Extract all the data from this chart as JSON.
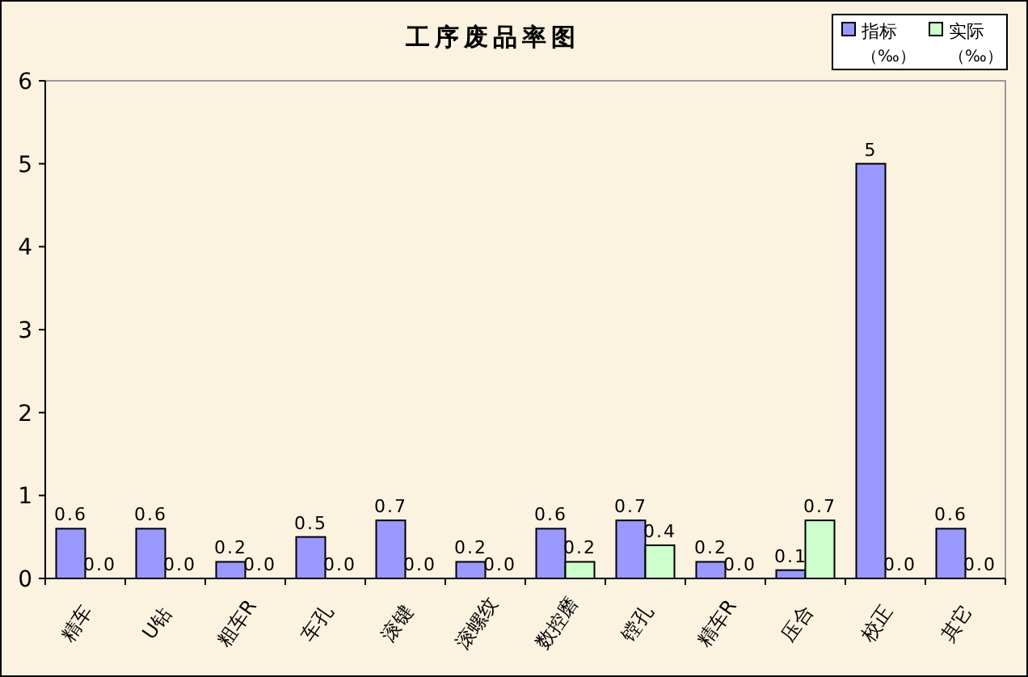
{
  "chart_data": {
    "type": "bar",
    "title": "工序废品率图",
    "categories": [
      "精车",
      "U钻",
      "粗车R",
      "车孔",
      "滚键",
      "滚螺纹",
      "数控磨",
      "镗孔",
      "精车R",
      "压合",
      "校正",
      "其它"
    ],
    "series": [
      {
        "name": "指标（‰）",
        "color": "#9999ff",
        "values": [
          0.6,
          0.6,
          0.2,
          0.5,
          0.7,
          0.2,
          0.6,
          0.7,
          0.2,
          0.1,
          5,
          0.6
        ],
        "value_labels": [
          "0.6",
          "0.6",
          "0.2",
          "0.5",
          "0.7",
          "0.2",
          "0.6",
          "0.7",
          "0.2",
          "0.1",
          "5",
          "0.6"
        ]
      },
      {
        "name": "实际（‰）",
        "color": "#ccffcc",
        "values": [
          0,
          0,
          0,
          0,
          0,
          0,
          0.2,
          0.4,
          0,
          0.7,
          0,
          0
        ],
        "value_labels": [
          "0.0",
          "0.0",
          "0.0",
          "0.0",
          "0.0",
          "0.0",
          "0.2",
          "0.4",
          "0.0",
          "0.7",
          "0.0",
          "0.0"
        ]
      }
    ],
    "ylim": [
      0,
      6
    ],
    "yticks": [
      0,
      1,
      2,
      3,
      4,
      5,
      6
    ],
    "grid": false,
    "legend": "top right"
  }
}
